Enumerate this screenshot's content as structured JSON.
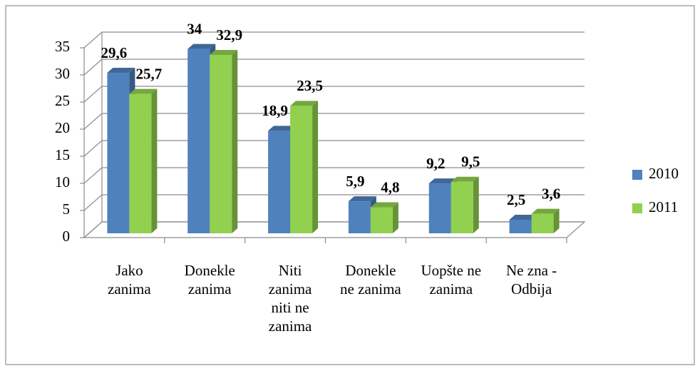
{
  "chart_data": {
    "type": "bar3d",
    "categories": [
      "Jako zanima",
      "Donekle zanima",
      "Niti zanima niti ne zanima",
      "Donekle ne zanima",
      "Uopšte ne zanima",
      "Ne zna - Odbija"
    ],
    "series": [
      {
        "name": "2010",
        "color": "#4f81bd",
        "values": [
          29.6,
          34,
          18.9,
          5.9,
          9.2,
          2.5
        ],
        "value_labels": [
          "29,6",
          "34",
          "18,9",
          "5,9",
          "9,2",
          "2,5"
        ]
      },
      {
        "name": "2011",
        "color": "#92d050",
        "values": [
          25.7,
          32.9,
          23.5,
          4.8,
          9.5,
          3.6
        ],
        "value_labels": [
          "25,7",
          "32,9",
          "23,5",
          "4,8",
          "9,5",
          "3,6"
        ]
      }
    ],
    "ylim": [
      0,
      35
    ],
    "yticks": [
      0,
      5,
      10,
      15,
      20,
      25,
      30,
      35
    ],
    "grid": true,
    "legend": "right"
  }
}
